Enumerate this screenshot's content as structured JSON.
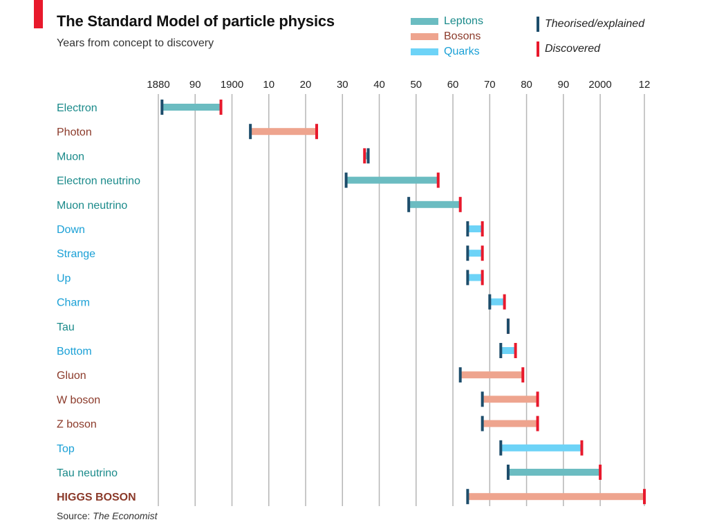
{
  "header": {
    "title": "The Standard Model of particle physics",
    "subtitle": "Years from concept to discovery"
  },
  "legend": {
    "leptons": "Leptons",
    "bosons": "Bosons",
    "quarks": "Quarks",
    "theorised": "Theorised/explained",
    "discovered": "Discovered"
  },
  "source": {
    "prefix": "Source: ",
    "name": "The Economist"
  },
  "colors": {
    "lepton": "#6bbcc1",
    "boson": "#eea48e",
    "quark": "#6dd3f7",
    "lepton_text": "#1a8a8a",
    "boson_text": "#8b3a2a",
    "quark_text": "#1aa0d6",
    "theorised_marker": "#1d4d6b",
    "discovered_marker": "#e8192c",
    "grid": "#b5b5b5",
    "accent": "#e8192c"
  },
  "chart_data": {
    "type": "range-bar",
    "title": "The Standard Model of particle physics",
    "subtitle": "Years from concept to discovery",
    "xlim": [
      1880,
      2012
    ],
    "x_ticks": [
      1880,
      1890,
      1900,
      1910,
      1920,
      1930,
      1940,
      1950,
      1960,
      1970,
      1980,
      1990,
      2000,
      2012
    ],
    "x_tick_labels": [
      "1880",
      "90",
      "1900",
      "10",
      "20",
      "30",
      "40",
      "50",
      "60",
      "70",
      "80",
      "90",
      "2000",
      "12"
    ],
    "grid": true,
    "legend_position": "top-right",
    "rows": [
      {
        "name": "Electron",
        "category": "lepton",
        "theorised": 1881,
        "discovered": 1897
      },
      {
        "name": "Photon",
        "category": "boson",
        "theorised": 1905,
        "discovered": 1923
      },
      {
        "name": "Muon",
        "category": "lepton",
        "theorised": 1937,
        "discovered": 1936
      },
      {
        "name": "Electron neutrino",
        "category": "lepton",
        "theorised": 1931,
        "discovered": 1956
      },
      {
        "name": "Muon neutrino",
        "category": "lepton",
        "theorised": 1948,
        "discovered": 1962
      },
      {
        "name": "Down",
        "category": "quark",
        "theorised": 1964,
        "discovered": 1968
      },
      {
        "name": "Strange",
        "category": "quark",
        "theorised": 1964,
        "discovered": 1968
      },
      {
        "name": "Up",
        "category": "quark",
        "theorised": 1964,
        "discovered": 1968
      },
      {
        "name": "Charm",
        "category": "quark",
        "theorised": 1970,
        "discovered": 1974
      },
      {
        "name": "Tau",
        "category": "lepton",
        "theorised": 1975,
        "discovered": 1975
      },
      {
        "name": "Bottom",
        "category": "quark",
        "theorised": 1973,
        "discovered": 1977
      },
      {
        "name": "Gluon",
        "category": "boson",
        "theorised": 1962,
        "discovered": 1979
      },
      {
        "name": "W boson",
        "category": "boson",
        "theorised": 1968,
        "discovered": 1983
      },
      {
        "name": "Z boson",
        "category": "boson",
        "theorised": 1968,
        "discovered": 1983
      },
      {
        "name": "Top",
        "category": "quark",
        "theorised": 1973,
        "discovered": 1995
      },
      {
        "name": "Tau neutrino",
        "category": "lepton",
        "theorised": 1975,
        "discovered": 2000
      },
      {
        "name": "HIGGS BOSON",
        "category": "boson",
        "theorised": 1964,
        "discovered": 2012,
        "bold": true
      }
    ]
  }
}
